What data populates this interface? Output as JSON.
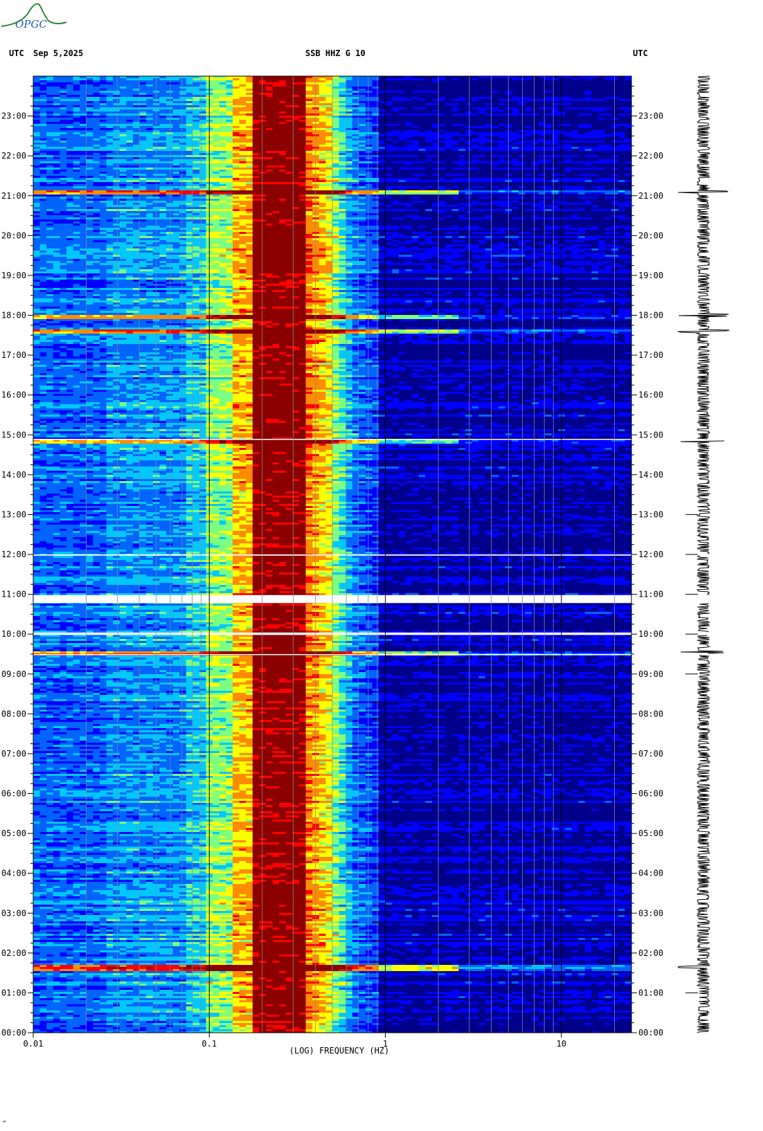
{
  "header": {
    "left_tz": "UTC",
    "date": "Sep 5,2025",
    "station": "SSB HHZ G 10",
    "right_tz": "UTC"
  },
  "logo": {
    "text": "OPGC",
    "color": "#2e8b3a",
    "text_color": "#1f5fa8"
  },
  "footer_mark": "“",
  "chart_data": {
    "type": "heatmap",
    "title": "SSB HHZ G 10",
    "xlabel": "(LOG) FREQUENCY (HZ)",
    "ylabel": "UTC",
    "x_scale": "log",
    "xlim": [
      0.01,
      25
    ],
    "x_ticks": [
      0.01,
      0.1,
      1,
      10
    ],
    "x_tick_labels": [
      "0.01",
      "0.1",
      "1",
      "10"
    ],
    "y_ticks": [
      "00:00",
      "01:00",
      "02:00",
      "03:00",
      "04:00",
      "05:00",
      "06:00",
      "07:00",
      "08:00",
      "09:00",
      "10:00",
      "11:00",
      "12:00",
      "13:00",
      "14:00",
      "15:00",
      "16:00",
      "17:00",
      "18:00",
      "19:00",
      "20:00",
      "21:00",
      "22:00",
      "23:00"
    ],
    "ylim_hours": [
      0,
      24
    ],
    "gaps_hours": [
      [
        10.78,
        10.98
      ],
      [
        9.98,
        10.04
      ],
      [
        11.97,
        12.0
      ],
      [
        14.88,
        14.9
      ],
      [
        9.48,
        9.5
      ]
    ],
    "events_hours": [
      14.85,
      9.55,
      21.1,
      1.65,
      18.0,
      17.6
    ],
    "colormap": [
      "#00008b",
      "#0000ff",
      "#0064ff",
      "#00c8ff",
      "#7cff80",
      "#ffff00",
      "#ff8c00",
      "#ff0000",
      "#8b0000"
    ],
    "grid": true
  }
}
